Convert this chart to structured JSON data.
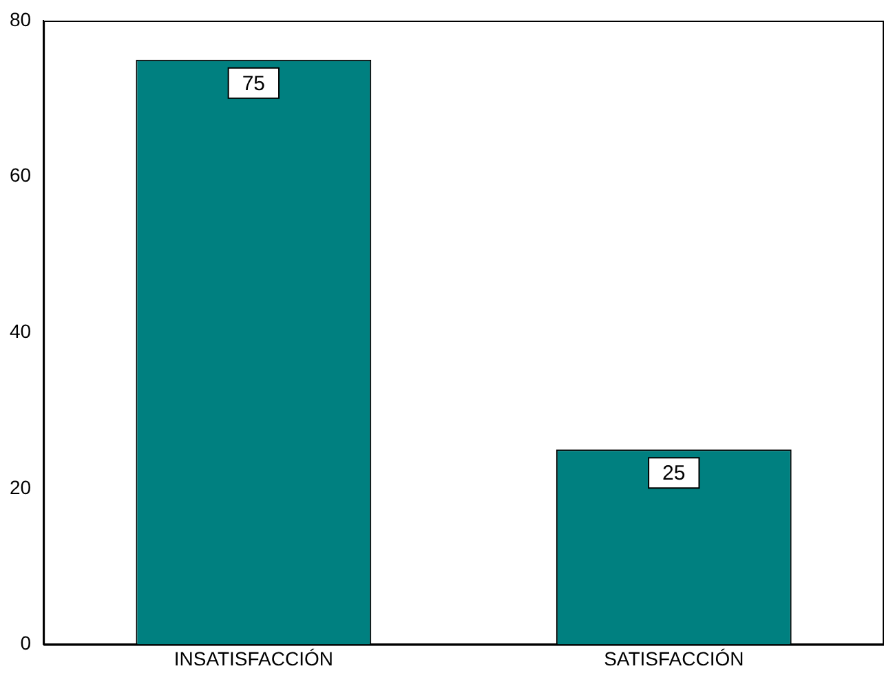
{
  "chart_data": {
    "type": "bar",
    "categories": [
      "INSATISFACCIÓN",
      "SATISFACCIÓN"
    ],
    "values": [
      75,
      25
    ],
    "color": "#008080",
    "ylim": [
      0,
      80
    ],
    "yticks": [
      0,
      20,
      40,
      60,
      80
    ],
    "grid": false,
    "legend": false,
    "data_labels": true
  }
}
